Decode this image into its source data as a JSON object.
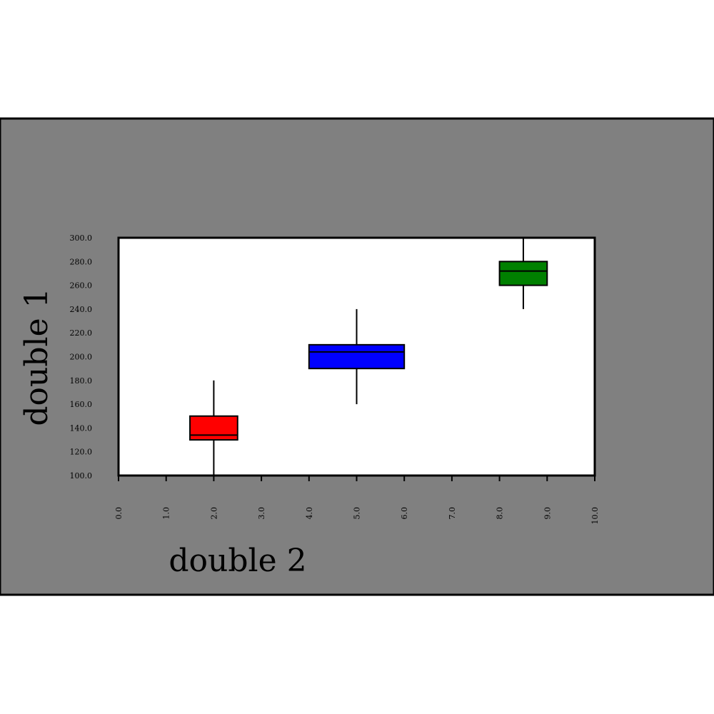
{
  "chart_data": {
    "type": "boxplot",
    "title": "",
    "xlabel": "double 2",
    "ylabel": "double 1",
    "xlim": [
      0,
      10
    ],
    "ylim": [
      100,
      300
    ],
    "x_ticks": [
      "0.0",
      "1.0",
      "2.0",
      "3.0",
      "4.0",
      "5.0",
      "6.0",
      "7.0",
      "8.0",
      "9.0",
      "10.0"
    ],
    "y_ticks": [
      "100.0",
      "120.0",
      "140.0",
      "160.0",
      "180.0",
      "200.0",
      "220.0",
      "240.0",
      "260.0",
      "280.0",
      "300.0"
    ],
    "grid": false,
    "legend": "none",
    "colors": {
      "background": "#808080",
      "plot_background": "#ffffff"
    },
    "boxes": [
      {
        "x_start": 1.5,
        "x_end": 2.5,
        "whisker_x": 2.0,
        "whisker_low": 100,
        "q1": 130,
        "median": 134,
        "q3": 150,
        "whisker_high": 180,
        "color": "#ff0000"
      },
      {
        "x_start": 4.0,
        "x_end": 6.0,
        "whisker_x": 5.0,
        "whisker_low": 160,
        "q1": 190,
        "median": 204,
        "q3": 210,
        "whisker_high": 240,
        "color": "#0000ff"
      },
      {
        "x_start": 8.0,
        "x_end": 9.0,
        "whisker_x": 8.5,
        "whisker_low": 240,
        "q1": 260,
        "median": 272,
        "q3": 280,
        "whisker_high": 300,
        "color": "#008000"
      }
    ]
  }
}
